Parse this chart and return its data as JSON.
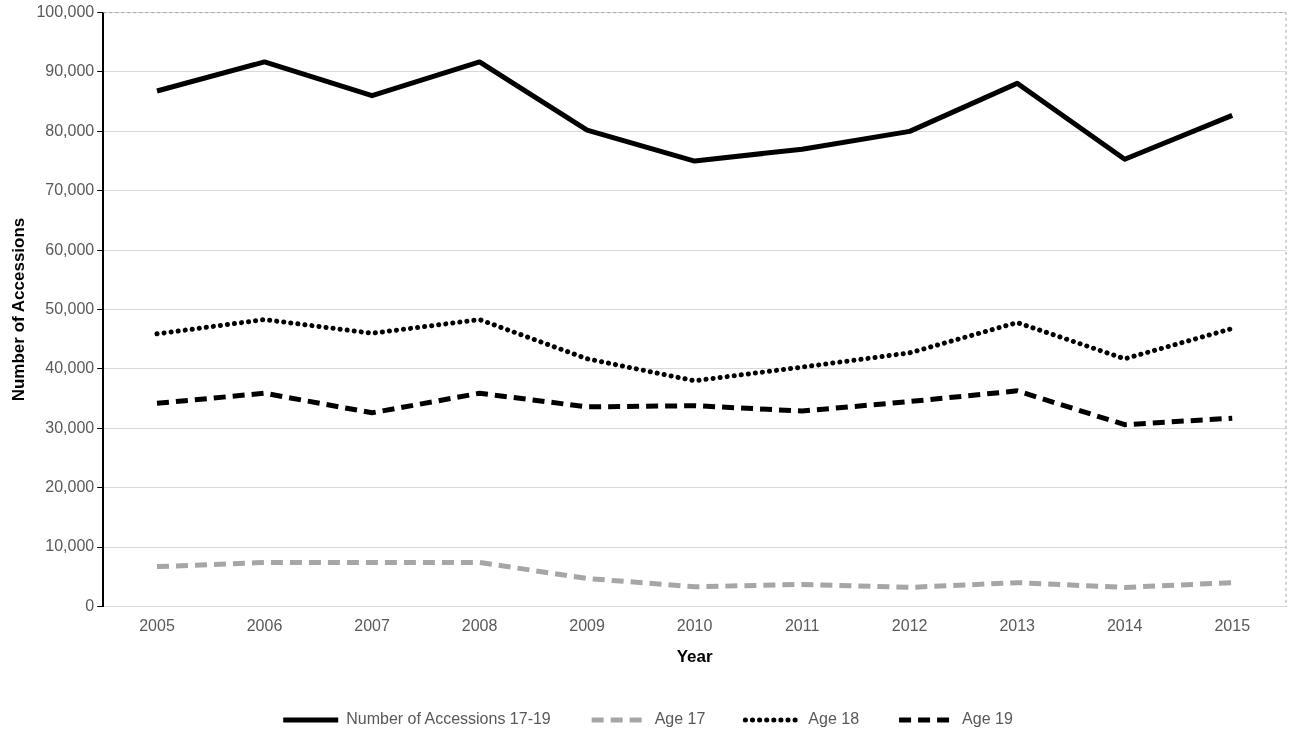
{
  "chart_data": {
    "type": "line",
    "xlabel": "Year",
    "ylabel": "Number of Accessions",
    "categories": [
      "2005",
      "2006",
      "2007",
      "2008",
      "2009",
      "2010",
      "2011",
      "2012",
      "2013",
      "2014",
      "2015"
    ],
    "series": [
      {
        "name": "Number of Accessions 17-19",
        "color": "#000000",
        "line_style": "solid",
        "values": [
          86800,
          91700,
          86000,
          91700,
          80200,
          75000,
          77000,
          80000,
          88100,
          75300,
          82700
        ]
      },
      {
        "name": "Age 17",
        "color": "#a6a6a6",
        "line_style": "dashed",
        "values": [
          6700,
          7400,
          7400,
          7400,
          4700,
          3300,
          3700,
          3200,
          4000,
          3200,
          4000
        ]
      },
      {
        "name": "Age 18",
        "color": "#000000",
        "line_style": "dotted",
        "values": [
          45900,
          48300,
          46000,
          48300,
          41700,
          38000,
          40300,
          42700,
          47800,
          41700,
          46800
        ]
      },
      {
        "name": "Age 19",
        "color": "#000000",
        "line_style": "dashed",
        "values": [
          34200,
          35900,
          32600,
          35900,
          33600,
          33800,
          32900,
          34500,
          36300,
          30600,
          31700
        ]
      }
    ],
    "ylim": [
      0,
      100000
    ],
    "yticks": [
      0,
      {
        "value": 10000,
        "label": "10,000"
      },
      {
        "value": 20000,
        "label": "20,000"
      },
      {
        "value": 30000,
        "label": "30,000"
      },
      {
        "value": 40000,
        "label": "40,000"
      },
      {
        "value": 50000,
        "label": "50,000"
      },
      {
        "value": 60000,
        "label": "60,000"
      },
      {
        "value": 70000,
        "label": "70,000"
      },
      {
        "value": 80000,
        "label": "80,000"
      },
      {
        "value": 90000,
        "label": "90,000"
      },
      {
        "value": 100000,
        "label": "100,000"
      }
    ],
    "grid": "y",
    "legend": "bottom",
    "marker": "none"
  }
}
